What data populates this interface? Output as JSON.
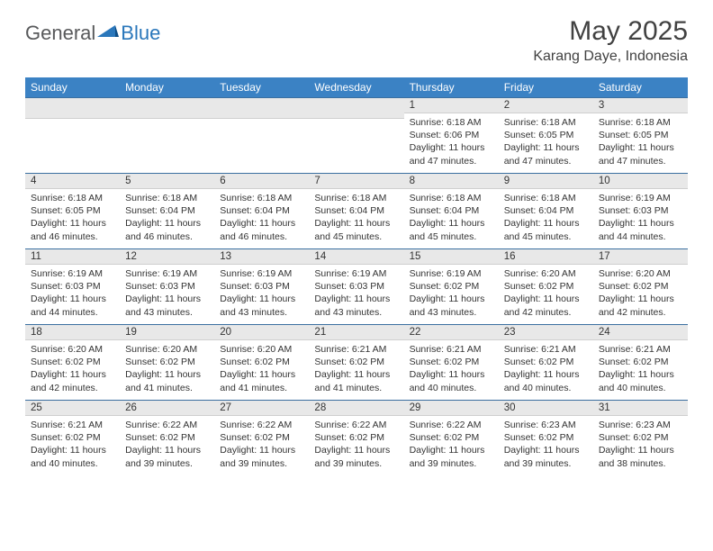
{
  "brand": {
    "part1": "General",
    "part2": "Blue"
  },
  "title": "May 2025",
  "location": "Karang Daye, Indonesia",
  "colors": {
    "header_bg": "#3b82c4",
    "header_fg": "#ffffff",
    "daynum_bg": "#e8e8e8",
    "border_top": "#3b6fa0",
    "text": "#333333",
    "logo_gray": "#58595b",
    "logo_blue": "#2a77bb"
  },
  "weekdays": [
    "Sunday",
    "Monday",
    "Tuesday",
    "Wednesday",
    "Thursday",
    "Friday",
    "Saturday"
  ],
  "weeks": [
    [
      null,
      null,
      null,
      null,
      {
        "n": "1",
        "sr": "6:18 AM",
        "ss": "6:06 PM",
        "dl": "11 hours and 47 minutes."
      },
      {
        "n": "2",
        "sr": "6:18 AM",
        "ss": "6:05 PM",
        "dl": "11 hours and 47 minutes."
      },
      {
        "n": "3",
        "sr": "6:18 AM",
        "ss": "6:05 PM",
        "dl": "11 hours and 47 minutes."
      }
    ],
    [
      {
        "n": "4",
        "sr": "6:18 AM",
        "ss": "6:05 PM",
        "dl": "11 hours and 46 minutes."
      },
      {
        "n": "5",
        "sr": "6:18 AM",
        "ss": "6:04 PM",
        "dl": "11 hours and 46 minutes."
      },
      {
        "n": "6",
        "sr": "6:18 AM",
        "ss": "6:04 PM",
        "dl": "11 hours and 46 minutes."
      },
      {
        "n": "7",
        "sr": "6:18 AM",
        "ss": "6:04 PM",
        "dl": "11 hours and 45 minutes."
      },
      {
        "n": "8",
        "sr": "6:18 AM",
        "ss": "6:04 PM",
        "dl": "11 hours and 45 minutes."
      },
      {
        "n": "9",
        "sr": "6:18 AM",
        "ss": "6:04 PM",
        "dl": "11 hours and 45 minutes."
      },
      {
        "n": "10",
        "sr": "6:19 AM",
        "ss": "6:03 PM",
        "dl": "11 hours and 44 minutes."
      }
    ],
    [
      {
        "n": "11",
        "sr": "6:19 AM",
        "ss": "6:03 PM",
        "dl": "11 hours and 44 minutes."
      },
      {
        "n": "12",
        "sr": "6:19 AM",
        "ss": "6:03 PM",
        "dl": "11 hours and 43 minutes."
      },
      {
        "n": "13",
        "sr": "6:19 AM",
        "ss": "6:03 PM",
        "dl": "11 hours and 43 minutes."
      },
      {
        "n": "14",
        "sr": "6:19 AM",
        "ss": "6:03 PM",
        "dl": "11 hours and 43 minutes."
      },
      {
        "n": "15",
        "sr": "6:19 AM",
        "ss": "6:02 PM",
        "dl": "11 hours and 43 minutes."
      },
      {
        "n": "16",
        "sr": "6:20 AM",
        "ss": "6:02 PM",
        "dl": "11 hours and 42 minutes."
      },
      {
        "n": "17",
        "sr": "6:20 AM",
        "ss": "6:02 PM",
        "dl": "11 hours and 42 minutes."
      }
    ],
    [
      {
        "n": "18",
        "sr": "6:20 AM",
        "ss": "6:02 PM",
        "dl": "11 hours and 42 minutes."
      },
      {
        "n": "19",
        "sr": "6:20 AM",
        "ss": "6:02 PM",
        "dl": "11 hours and 41 minutes."
      },
      {
        "n": "20",
        "sr": "6:20 AM",
        "ss": "6:02 PM",
        "dl": "11 hours and 41 minutes."
      },
      {
        "n": "21",
        "sr": "6:21 AM",
        "ss": "6:02 PM",
        "dl": "11 hours and 41 minutes."
      },
      {
        "n": "22",
        "sr": "6:21 AM",
        "ss": "6:02 PM",
        "dl": "11 hours and 40 minutes."
      },
      {
        "n": "23",
        "sr": "6:21 AM",
        "ss": "6:02 PM",
        "dl": "11 hours and 40 minutes."
      },
      {
        "n": "24",
        "sr": "6:21 AM",
        "ss": "6:02 PM",
        "dl": "11 hours and 40 minutes."
      }
    ],
    [
      {
        "n": "25",
        "sr": "6:21 AM",
        "ss": "6:02 PM",
        "dl": "11 hours and 40 minutes."
      },
      {
        "n": "26",
        "sr": "6:22 AM",
        "ss": "6:02 PM",
        "dl": "11 hours and 39 minutes."
      },
      {
        "n": "27",
        "sr": "6:22 AM",
        "ss": "6:02 PM",
        "dl": "11 hours and 39 minutes."
      },
      {
        "n": "28",
        "sr": "6:22 AM",
        "ss": "6:02 PM",
        "dl": "11 hours and 39 minutes."
      },
      {
        "n": "29",
        "sr": "6:22 AM",
        "ss": "6:02 PM",
        "dl": "11 hours and 39 minutes."
      },
      {
        "n": "30",
        "sr": "6:23 AM",
        "ss": "6:02 PM",
        "dl": "11 hours and 39 minutes."
      },
      {
        "n": "31",
        "sr": "6:23 AM",
        "ss": "6:02 PM",
        "dl": "11 hours and 38 minutes."
      }
    ]
  ],
  "labels": {
    "sunrise": "Sunrise:",
    "sunset": "Sunset:",
    "daylight": "Daylight:"
  }
}
